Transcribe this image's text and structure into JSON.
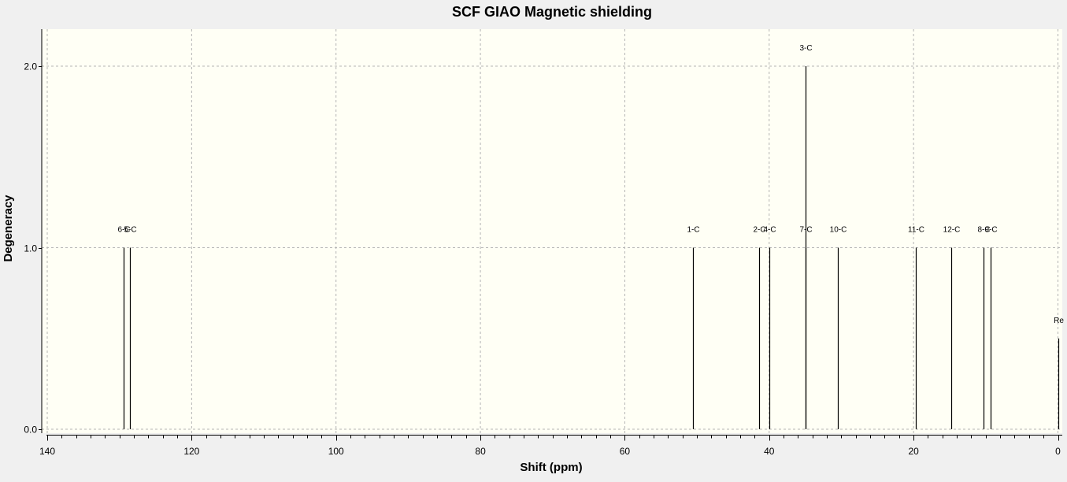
{
  "chart_data": {
    "type": "bar",
    "title": "SCF GIAO Magnetic shielding",
    "xlabel": "Shift (ppm)",
    "ylabel": "Degeneracy",
    "xlim": [
      140,
      0
    ],
    "ylim": [
      0,
      2.2
    ],
    "x_ticks": [
      {
        "value": 140,
        "label": "140"
      },
      {
        "value": 120,
        "label": "120"
      },
      {
        "value": 100,
        "label": "100"
      },
      {
        "value": 80,
        "label": "80"
      },
      {
        "value": 60,
        "label": "60"
      },
      {
        "value": 40,
        "label": "40"
      },
      {
        "value": 20,
        "label": "20"
      },
      {
        "value": 0,
        "label": "0"
      }
    ],
    "y_ticks": [
      {
        "value": 0,
        "label": "0.0"
      },
      {
        "value": 1,
        "label": "1.0"
      },
      {
        "value": 2,
        "label": "2.0"
      }
    ],
    "grid": true,
    "background_color": "#fffff5",
    "bar_color": "#000000",
    "peaks": [
      {
        "label": "6-C",
        "x": 129.4,
        "y": 1
      },
      {
        "label": "5-C",
        "x": 128.5,
        "y": 1
      },
      {
        "label": "1-C",
        "x": 50.6,
        "y": 1
      },
      {
        "label": "2-C",
        "x": 41.4,
        "y": 1
      },
      {
        "label": "4-C",
        "x": 40.0,
        "y": 1
      },
      {
        "label": "3-C",
        "x": 35.0,
        "y": 2
      },
      {
        "label": "7-C",
        "x": 35.0,
        "y": 1
      },
      {
        "label": "10-C",
        "x": 30.5,
        "y": 1
      },
      {
        "label": "11-C",
        "x": 19.7,
        "y": 1
      },
      {
        "label": "12-C",
        "x": 14.8,
        "y": 1
      },
      {
        "label": "8-C",
        "x": 10.3,
        "y": 1
      },
      {
        "label": "9-C",
        "x": 9.3,
        "y": 1
      },
      {
        "label": "Re",
        "x": 0.0,
        "y": 0.5
      }
    ]
  }
}
